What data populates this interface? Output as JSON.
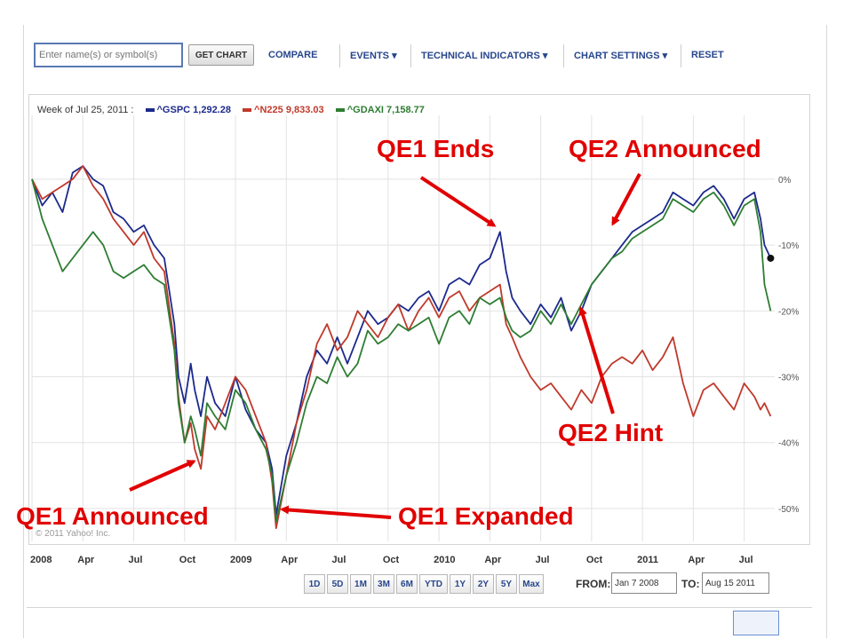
{
  "toolbar": {
    "symbol_placeholder": "Enter name(s) or symbol(s)",
    "get_chart_label": "GET CHART",
    "compare_label": "COMPARE",
    "events_label": "EVENTS ▾",
    "technical_label": "TECHNICAL INDICATORS ▾",
    "settings_label": "CHART SETTINGS ▾",
    "reset_label": "RESET"
  },
  "legend": {
    "week_label": "Week of Jul 25, 2011 :",
    "items": [
      {
        "label": "^GSPC 1,292.28",
        "color": "#1c2a8c"
      },
      {
        "label": "^N225 9,833.03",
        "color": "#c0392b"
      },
      {
        "label": "^GDAXI 7,158.77",
        "color": "#2e7d32"
      }
    ]
  },
  "copyright": "© 2011 Yahoo! Inc.",
  "annotations": {
    "qe1_announced": "QE1 Announced",
    "qe1_expanded": "QE1 Expanded",
    "qe1_ends": "QE1 Ends",
    "qe2_announced": "QE2 Announced",
    "qe2_hint": "QE2 Hint"
  },
  "range_buttons": [
    "1D",
    "5D",
    "1M",
    "3M",
    "6M",
    "YTD",
    "1Y",
    "2Y",
    "5Y",
    "Max"
  ],
  "date_range": {
    "from_label": "FROM:",
    "from_value": "Jan 7 2008",
    "to_label": "TO:",
    "to_value": "Aug 15 2011"
  },
  "chart_data": {
    "type": "line",
    "title": "",
    "xlabel": "",
    "ylabel": "",
    "x_ticks": [
      "2008",
      "Apr",
      "Jul",
      "Oct",
      "2009",
      "Apr",
      "Jul",
      "Oct",
      "2010",
      "Apr",
      "Jul",
      "Oct",
      "2011",
      "Apr",
      "Jul"
    ],
    "y_ticks": [
      "0%",
      "-10%",
      "-20%",
      "-30%",
      "-40%",
      "-50%"
    ],
    "y_tick_values": [
      0,
      -10,
      -20,
      -30,
      -40,
      -50
    ],
    "ylim": [
      -55,
      7
    ],
    "xlim": [
      2008.0,
      2011.65
    ],
    "grid": true,
    "legend_position": "top-left",
    "series": [
      {
        "name": "^GSPC",
        "color": "#1c2a8c",
        "x": [
          2008.0,
          2008.05,
          2008.1,
          2008.15,
          2008.2,
          2008.25,
          2008.3,
          2008.35,
          2008.4,
          2008.45,
          2008.5,
          2008.55,
          2008.6,
          2008.65,
          2008.7,
          2008.72,
          2008.75,
          2008.78,
          2008.8,
          2008.83,
          2008.86,
          2008.9,
          2008.95,
          2009.0,
          2009.05,
          2009.1,
          2009.15,
          2009.18,
          2009.2,
          2009.25,
          2009.3,
          2009.35,
          2009.4,
          2009.45,
          2009.5,
          2009.55,
          2009.6,
          2009.65,
          2009.7,
          2009.75,
          2009.8,
          2009.85,
          2009.9,
          2009.95,
          2010.0,
          2010.05,
          2010.1,
          2010.15,
          2010.2,
          2010.25,
          2010.3,
          2010.33,
          2010.36,
          2010.4,
          2010.45,
          2010.5,
          2010.55,
          2010.6,
          2010.65,
          2010.7,
          2010.75,
          2010.8,
          2010.85,
          2010.9,
          2010.95,
          2011.0,
          2011.05,
          2011.1,
          2011.15,
          2011.2,
          2011.25,
          2011.3,
          2011.35,
          2011.4,
          2011.45,
          2011.5,
          2011.55,
          2011.58,
          2011.6,
          2011.63
        ],
        "values": [
          0,
          -4,
          -2,
          -5,
          1,
          2,
          0,
          -1,
          -5,
          -6,
          -8,
          -7,
          -10,
          -12,
          -22,
          -30,
          -34,
          -28,
          -32,
          -36,
          -30,
          -34,
          -36,
          -30,
          -35,
          -38,
          -40,
          -44,
          -51,
          -42,
          -37,
          -30,
          -26,
          -28,
          -24,
          -28,
          -24,
          -20,
          -22,
          -21,
          -19,
          -20,
          -18,
          -17,
          -20,
          -16,
          -15,
          -16,
          -13,
          -12,
          -8,
          -14,
          -18,
          -20,
          -22,
          -19,
          -21,
          -18,
          -23,
          -20,
          -16,
          -14,
          -12,
          -10,
          -8,
          -7,
          -6,
          -5,
          -2,
          -3,
          -4,
          -2,
          -1,
          -3,
          -6,
          -3,
          -2,
          -6,
          -10,
          -12
        ]
      },
      {
        "name": "^N225",
        "color": "#c0392b",
        "x": [
          2008.0,
          2008.05,
          2008.1,
          2008.15,
          2008.2,
          2008.25,
          2008.3,
          2008.35,
          2008.4,
          2008.45,
          2008.5,
          2008.55,
          2008.6,
          2008.65,
          2008.7,
          2008.72,
          2008.75,
          2008.78,
          2008.8,
          2008.83,
          2008.86,
          2008.9,
          2008.95,
          2009.0,
          2009.05,
          2009.1,
          2009.15,
          2009.18,
          2009.2,
          2009.25,
          2009.3,
          2009.35,
          2009.4,
          2009.45,
          2009.5,
          2009.55,
          2009.6,
          2009.65,
          2009.7,
          2009.75,
          2009.8,
          2009.85,
          2009.9,
          2009.95,
          2010.0,
          2010.05,
          2010.1,
          2010.15,
          2010.2,
          2010.25,
          2010.3,
          2010.33,
          2010.36,
          2010.4,
          2010.45,
          2010.5,
          2010.55,
          2010.6,
          2010.65,
          2010.7,
          2010.75,
          2010.8,
          2010.85,
          2010.9,
          2010.95,
          2011.0,
          2011.05,
          2011.1,
          2011.15,
          2011.2,
          2011.25,
          2011.3,
          2011.35,
          2011.4,
          2011.45,
          2011.5,
          2011.55,
          2011.58,
          2011.6,
          2011.63
        ],
        "values": [
          0,
          -3,
          -2,
          -1,
          0,
          2,
          -1,
          -3,
          -6,
          -8,
          -10,
          -8,
          -12,
          -14,
          -25,
          -33,
          -40,
          -37,
          -41,
          -44,
          -36,
          -38,
          -34,
          -30,
          -32,
          -36,
          -40,
          -46,
          -53,
          -45,
          -37,
          -32,
          -25,
          -22,
          -26,
          -24,
          -20,
          -22,
          -24,
          -21,
          -19,
          -23,
          -20,
          -18,
          -21,
          -18,
          -17,
          -20,
          -18,
          -17,
          -16,
          -22,
          -24,
          -27,
          -30,
          -32,
          -31,
          -33,
          -35,
          -32,
          -34,
          -30,
          -28,
          -27,
          -28,
          -26,
          -29,
          -27,
          -24,
          -31,
          -36,
          -32,
          -31,
          -33,
          -35,
          -31,
          -33,
          -35,
          -34,
          -36
        ]
      },
      {
        "name": "^GDAXI",
        "color": "#2e7d32",
        "x": [
          2008.0,
          2008.05,
          2008.1,
          2008.15,
          2008.2,
          2008.25,
          2008.3,
          2008.35,
          2008.4,
          2008.45,
          2008.5,
          2008.55,
          2008.6,
          2008.65,
          2008.7,
          2008.72,
          2008.75,
          2008.78,
          2008.8,
          2008.83,
          2008.86,
          2008.9,
          2008.95,
          2009.0,
          2009.05,
          2009.1,
          2009.15,
          2009.18,
          2009.2,
          2009.25,
          2009.3,
          2009.35,
          2009.4,
          2009.45,
          2009.5,
          2009.55,
          2009.6,
          2009.65,
          2009.7,
          2009.75,
          2009.8,
          2009.85,
          2009.9,
          2009.95,
          2010.0,
          2010.05,
          2010.1,
          2010.15,
          2010.2,
          2010.25,
          2010.3,
          2010.33,
          2010.36,
          2010.4,
          2010.45,
          2010.5,
          2010.55,
          2010.6,
          2010.65,
          2010.7,
          2010.75,
          2010.8,
          2010.85,
          2010.9,
          2010.95,
          2011.0,
          2011.05,
          2011.1,
          2011.15,
          2011.2,
          2011.25,
          2011.3,
          2011.35,
          2011.4,
          2011.45,
          2011.5,
          2011.55,
          2011.58,
          2011.6,
          2011.63
        ],
        "values": [
          0,
          -6,
          -10,
          -14,
          -12,
          -10,
          -8,
          -10,
          -14,
          -15,
          -14,
          -13,
          -15,
          -16,
          -26,
          -34,
          -40,
          -36,
          -38,
          -42,
          -34,
          -36,
          -38,
          -32,
          -34,
          -38,
          -41,
          -45,
          -52,
          -45,
          -40,
          -34,
          -30,
          -31,
          -27,
          -30,
          -28,
          -23,
          -25,
          -24,
          -22,
          -23,
          -22,
          -21,
          -25,
          -21,
          -20,
          -22,
          -18,
          -19,
          -18,
          -21,
          -23,
          -24,
          -23,
          -20,
          -22,
          -19,
          -22,
          -19,
          -16,
          -14,
          -12,
          -11,
          -9,
          -8,
          -7,
          -6,
          -3,
          -4,
          -5,
          -3,
          -2,
          -4,
          -7,
          -4,
          -3,
          -8,
          -16,
          -20
        ]
      }
    ]
  }
}
